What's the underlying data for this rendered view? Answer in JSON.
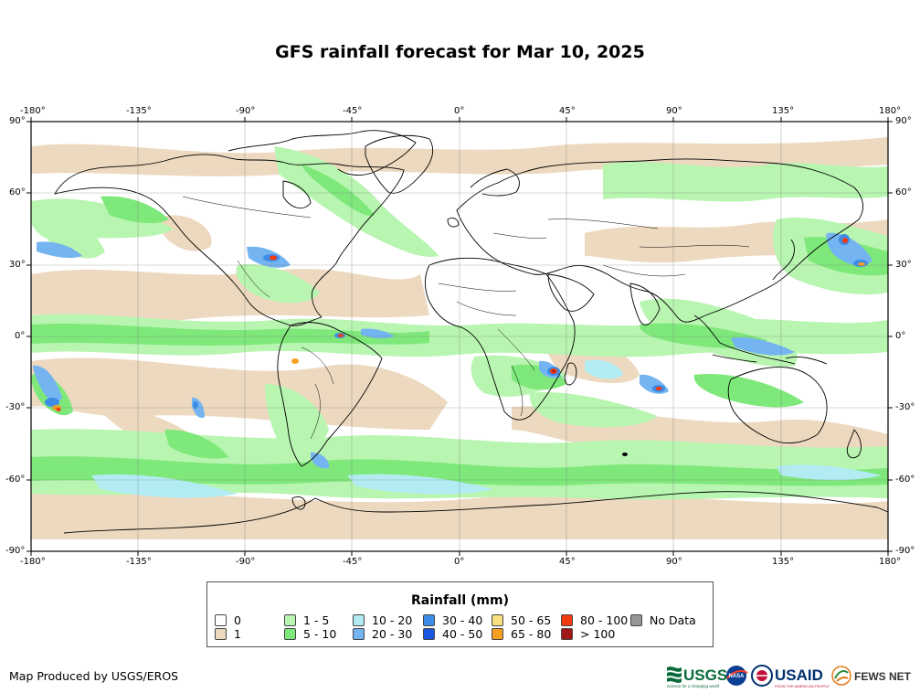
{
  "title": "GFS rainfall forecast for Mar 10, 2025",
  "lon_ticks": [
    "-180°",
    "-135°",
    "-90°",
    "-45°",
    "0°",
    "45°",
    "90°",
    "135°",
    "180°"
  ],
  "lat_ticks_left": [
    "90°",
    "60°",
    "30°",
    "0°",
    "-30°",
    "-60°",
    "-90°"
  ],
  "lat_ticks_right": [
    "90°",
    "60°",
    "30°",
    "0°",
    "-30°",
    "-60°",
    "-90°"
  ],
  "legend": {
    "title": "Rainfall (mm)",
    "items": [
      {
        "label": "0",
        "color": "#ffffff"
      },
      {
        "label": "1",
        "color": "#ecd9bf"
      },
      {
        "label": "1 - 5",
        "color": "#b8f5b0"
      },
      {
        "label": "5 - 10",
        "color": "#7ee87a"
      },
      {
        "label": "10 - 20",
        "color": "#b2ecf2"
      },
      {
        "label": "20 - 30",
        "color": "#74b4f0"
      },
      {
        "label": "30 - 40",
        "color": "#3c8ce8"
      },
      {
        "label": "40 - 50",
        "color": "#1a55e0"
      },
      {
        "label": "50 - 65",
        "color": "#f8e080"
      },
      {
        "label": "65 - 80",
        "color": "#f7a020"
      },
      {
        "label": "80 - 100",
        "color": "#f23a0e"
      },
      {
        "label": "> 100",
        "color": "#a01818"
      },
      {
        "label": "No Data",
        "color": "#969696"
      }
    ]
  },
  "credit": "Map Produced by USGS/EROS",
  "logos": {
    "usgs": "USGS",
    "usgs_tagline": "science for a changing world",
    "nasa": "NASA",
    "usaid": "USAID",
    "usaid_tagline": "FROM THE AMERICAN PEOPLE",
    "fewsnet": "FEWS NET"
  }
}
